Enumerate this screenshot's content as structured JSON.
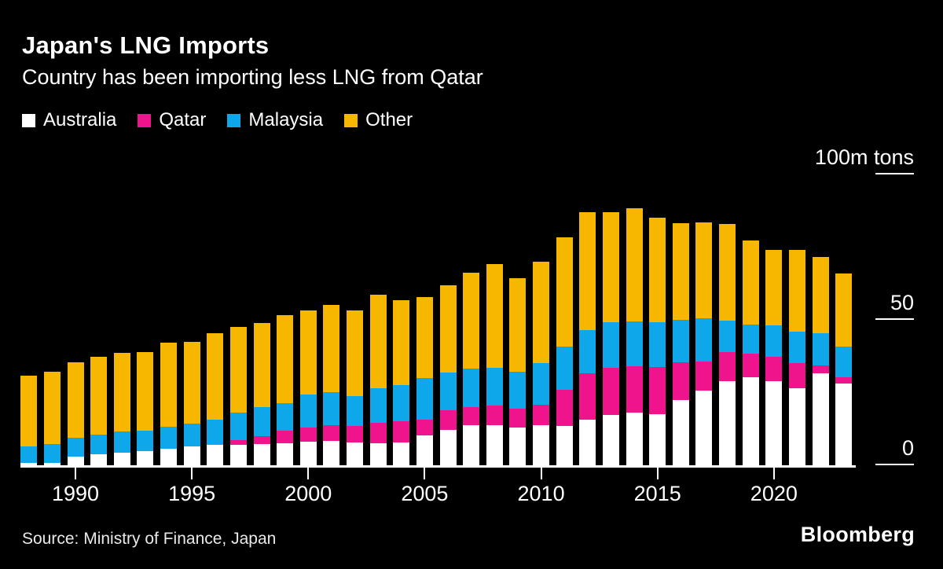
{
  "header": {
    "title": "Japan's LNG Imports",
    "subtitle": "Country has been importing less LNG from Qatar"
  },
  "legend": [
    {
      "label": "Australia",
      "color": "#ffffff"
    },
    {
      "label": "Qatar",
      "color": "#f0148c"
    },
    {
      "label": "Malaysia",
      "color": "#0ea7e9"
    },
    {
      "label": "Other",
      "color": "#f7b600"
    }
  ],
  "footer": {
    "source": "Source: Ministry of Finance, Japan",
    "brand": "Bloomberg"
  },
  "chart_data": {
    "type": "bar",
    "stacked": true,
    "unit": "m tons",
    "title": "Japan's LNG Imports",
    "subtitle": "Country has been importing less LNG from Qatar",
    "legend_position": "top",
    "grid": false,
    "x": [
      1988,
      1989,
      1990,
      1991,
      1992,
      1993,
      1994,
      1995,
      1996,
      1997,
      1998,
      1999,
      2000,
      2001,
      2002,
      2003,
      2004,
      2005,
      2006,
      2007,
      2008,
      2009,
      2010,
      2011,
      2012,
      2013,
      2014,
      2015,
      2016,
      2017,
      2018,
      2019,
      2020,
      2021,
      2022,
      2023
    ],
    "series": [
      {
        "name": "Australia",
        "color": "#ffffff",
        "values": [
          0.7,
          0.9,
          2.9,
          3.8,
          4.3,
          4.9,
          5.6,
          6.5,
          7.0,
          6.9,
          7.2,
          7.7,
          8.1,
          8.3,
          7.9,
          7.5,
          7.9,
          10.2,
          12.2,
          13.7,
          13.7,
          13.1,
          13.7,
          13.5,
          15.8,
          17.3,
          18.0,
          17.6,
          22.4,
          25.7,
          29.0,
          30.3,
          29.0,
          26.5,
          31.5,
          28.0
        ]
      },
      {
        "name": "Qatar",
        "color": "#f0148c",
        "values": [
          0,
          0,
          0,
          0,
          0,
          0,
          0,
          0,
          0,
          1.8,
          2.8,
          4.2,
          5.0,
          5.4,
          5.6,
          7.2,
          7.2,
          5.6,
          6.7,
          6.3,
          6.8,
          6.3,
          7.2,
          12.4,
          15.7,
          16.2,
          16.1,
          16.2,
          12.9,
          9.9,
          9.9,
          8.2,
          8.4,
          8.6,
          2.7,
          2.4
        ]
      },
      {
        "name": "Malaysia",
        "color": "#0ea7e9",
        "values": [
          5.9,
          6.3,
          6.6,
          6.7,
          7.4,
          7.0,
          7.7,
          7.9,
          8.8,
          9.4,
          10.0,
          9.5,
          11.2,
          11.4,
          10.4,
          11.9,
          12.4,
          14.1,
          13.1,
          13.2,
          13.0,
          12.8,
          14.2,
          14.8,
          14.9,
          15.6,
          15.4,
          15.3,
          14.7,
          15.0,
          10.9,
          9.9,
          10.6,
          10.8,
          11.1,
          10.4
        ]
      },
      {
        "name": "Other",
        "color": "#f7b600",
        "values": [
          24.2,
          25.0,
          25.8,
          26.9,
          26.9,
          27.0,
          28.8,
          28.1,
          29.7,
          29.4,
          28.8,
          30.1,
          29.0,
          30.0,
          29.3,
          32.1,
          29.3,
          27.9,
          29.9,
          33.0,
          35.6,
          32.2,
          34.9,
          37.7,
          40.7,
          38.0,
          39.0,
          36.0,
          33.3,
          33.0,
          33.1,
          28.9,
          26.1,
          28.2,
          26.3,
          25.1
        ]
      }
    ],
    "y_axis": {
      "max": 100,
      "ticks": [
        {
          "value": 0,
          "label": "0"
        },
        {
          "value": 50,
          "label": "50"
        },
        {
          "value": 100,
          "label": "100m tons"
        }
      ]
    },
    "x_axis": {
      "ticks": [
        1990,
        1995,
        2000,
        2005,
        2010,
        2015,
        2020
      ]
    }
  }
}
